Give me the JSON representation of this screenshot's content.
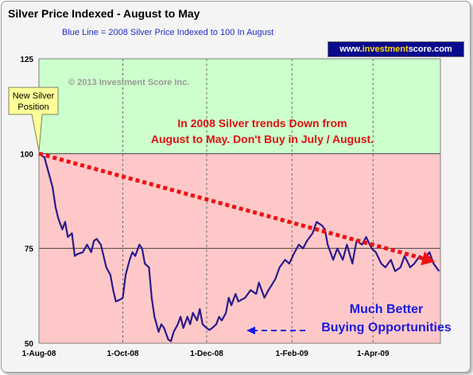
{
  "chart_data": {
    "type": "line",
    "title": "Silver Price Indexed - August to May",
    "subtitle": "Blue Line =  2008 Silver Price Indexed to 100 In August",
    "ylim": [
      50,
      125
    ],
    "yticks": [
      "125",
      "100",
      "75",
      "50"
    ],
    "xticks": [
      "1-Aug-08",
      "1-Oct-08",
      "1-Dec-08",
      "1-Feb-09",
      "1-Apr-09"
    ],
    "xlim": [
      "2008-08-01",
      "2009-05-20"
    ],
    "regions": [
      {
        "from": 100,
        "to": 125,
        "color": "#ccffcc"
      },
      {
        "from": 50,
        "to": 100,
        "color": "#ffc8c8"
      }
    ],
    "series": [
      {
        "color": "#2a1a8c",
        "points": [
          [
            "2008-08-01",
            100
          ],
          [
            "2008-08-05",
            99
          ],
          [
            "2008-08-08",
            95
          ],
          [
            "2008-08-11",
            91
          ],
          [
            "2008-08-13",
            86
          ],
          [
            "2008-08-15",
            83
          ],
          [
            "2008-08-18",
            80
          ],
          [
            "2008-08-20",
            82
          ],
          [
            "2008-08-22",
            78
          ],
          [
            "2008-08-25",
            79
          ],
          [
            "2008-08-27",
            73
          ],
          [
            "2008-08-29",
            73.5
          ],
          [
            "2008-09-02",
            74
          ],
          [
            "2008-09-05",
            76
          ],
          [
            "2008-09-08",
            74
          ],
          [
            "2008-09-10",
            77
          ],
          [
            "2008-09-12",
            77.5
          ],
          [
            "2008-09-15",
            76
          ],
          [
            "2008-09-17",
            73
          ],
          [
            "2008-09-19",
            70
          ],
          [
            "2008-09-22",
            68
          ],
          [
            "2008-09-24",
            64
          ],
          [
            "2008-09-26",
            61
          ],
          [
            "2008-09-29",
            61.5
          ],
          [
            "2008-10-01",
            62
          ],
          [
            "2008-10-03",
            68
          ],
          [
            "2008-10-06",
            72
          ],
          [
            "2008-10-08",
            74
          ],
          [
            "2008-10-10",
            73
          ],
          [
            "2008-10-13",
            76
          ],
          [
            "2008-10-15",
            75
          ],
          [
            "2008-10-17",
            71
          ],
          [
            "2008-10-20",
            70
          ],
          [
            "2008-10-22",
            62
          ],
          [
            "2008-10-24",
            57
          ],
          [
            "2008-10-27",
            53
          ],
          [
            "2008-10-29",
            55
          ],
          [
            "2008-10-31",
            54
          ],
          [
            "2008-11-03",
            51
          ],
          [
            "2008-11-05",
            50.5
          ],
          [
            "2008-11-07",
            53
          ],
          [
            "2008-11-10",
            55
          ],
          [
            "2008-11-12",
            57
          ],
          [
            "2008-11-14",
            54
          ],
          [
            "2008-11-17",
            57
          ],
          [
            "2008-11-19",
            55
          ],
          [
            "2008-11-21",
            58
          ],
          [
            "2008-11-24",
            56
          ],
          [
            "2008-11-26",
            59
          ],
          [
            "2008-11-28",
            55
          ],
          [
            "2008-12-01",
            54
          ],
          [
            "2008-12-03",
            53.5
          ],
          [
            "2008-12-05",
            54
          ],
          [
            "2008-12-08",
            55
          ],
          [
            "2008-12-10",
            57
          ],
          [
            "2008-12-12",
            56
          ],
          [
            "2008-12-15",
            58
          ],
          [
            "2008-12-17",
            62
          ],
          [
            "2008-12-19",
            60
          ],
          [
            "2008-12-22",
            63
          ],
          [
            "2008-12-24",
            61
          ],
          [
            "2008-12-29",
            62
          ],
          [
            "2009-01-02",
            64
          ],
          [
            "2009-01-06",
            63
          ],
          [
            "2009-01-08",
            66
          ],
          [
            "2009-01-12",
            62
          ],
          [
            "2009-01-15",
            64
          ],
          [
            "2009-01-20",
            67
          ],
          [
            "2009-01-23",
            70
          ],
          [
            "2009-01-27",
            72
          ],
          [
            "2009-01-30",
            71
          ],
          [
            "2009-02-03",
            74
          ],
          [
            "2009-02-06",
            76
          ],
          [
            "2009-02-09",
            75
          ],
          [
            "2009-02-12",
            77
          ],
          [
            "2009-02-16",
            79
          ],
          [
            "2009-02-19",
            82
          ],
          [
            "2009-02-23",
            81
          ],
          [
            "2009-02-25",
            80
          ],
          [
            "2009-02-27",
            76
          ],
          [
            "2009-03-03",
            72
          ],
          [
            "2009-03-06",
            75
          ],
          [
            "2009-03-10",
            72
          ],
          [
            "2009-03-13",
            76
          ],
          [
            "2009-03-17",
            71
          ],
          [
            "2009-03-20",
            77
          ],
          [
            "2009-03-24",
            76
          ],
          [
            "2009-03-27",
            78
          ],
          [
            "2009-03-31",
            75
          ],
          [
            "2009-04-03",
            74
          ],
          [
            "2009-04-07",
            71
          ],
          [
            "2009-04-10",
            70
          ],
          [
            "2009-04-14",
            72
          ],
          [
            "2009-04-17",
            69
          ],
          [
            "2009-04-21",
            70
          ],
          [
            "2009-04-24",
            73
          ],
          [
            "2009-04-28",
            70
          ],
          [
            "2009-05-01",
            71
          ],
          [
            "2009-05-05",
            73
          ],
          [
            "2009-05-08",
            72
          ],
          [
            "2009-05-12",
            74
          ],
          [
            "2009-05-15",
            71
          ],
          [
            "2009-05-19",
            69
          ]
        ]
      }
    ],
    "trend_arrow": {
      "from": [
        "2008-08-01",
        100
      ],
      "to": [
        "2009-05-16",
        71.5
      ],
      "color": "#ee1111"
    },
    "annotations": {
      "copyright": "© 2013 Investment Score Inc.",
      "callout_line1": "New Silver",
      "callout_line2": "Position",
      "red_line1": "In 2008 Silver trends Down from",
      "red_line2": "August to May.  Don't Buy in July / August.",
      "blue_line1": "Much Better",
      "blue_line2": "Buying Opportunities"
    },
    "grid": {
      "vertical_dashed": true,
      "horizontal": [
        75,
        100
      ]
    }
  },
  "brand": {
    "prefix": "www.",
    "highlight": "investment",
    "suffix": "score.com"
  }
}
